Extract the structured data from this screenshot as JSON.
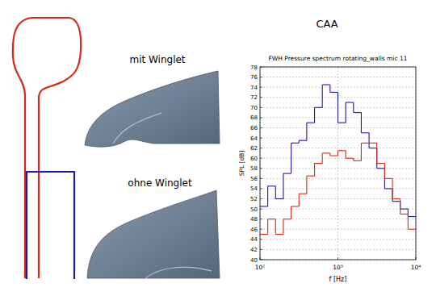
{
  "labels": {
    "with": "mit Winglet",
    "without": "ohne Winglet",
    "method": "CAA"
  },
  "chart_data": {
    "type": "histogram",
    "title": "FWH Pressure spectrum rotating_walls mic 11",
    "x_label": "f [Hz]",
    "y_label": "SPL [dB]",
    "bins": [
      100,
      125.9,
      158.5,
      199.5,
      251.2,
      316.2,
      398.1,
      501.2,
      631,
      794.3,
      1000,
      1258.9,
      1584.9,
      1995.3,
      2511.9,
      3162.3,
      3981.1,
      5011.9,
      6309.6,
      7943.3,
      10000
    ],
    "series": [
      {
        "color": "#1c1ca0",
        "values": [
          50.5,
          54.5,
          52,
          57,
          63,
          63.5,
          67,
          70,
          74.5,
          73,
          67,
          71,
          69,
          65,
          62,
          58,
          54,
          51.5,
          50,
          48.5
        ]
      },
      {
        "color": "#d42a1a",
        "values": [
          45,
          48,
          45,
          48,
          50.5,
          53,
          56.5,
          59,
          61,
          60.5,
          61.5,
          60,
          59.5,
          63,
          63,
          59,
          56,
          52,
          49,
          46
        ]
      }
    ],
    "log": "x",
    "xlim": [
      100,
      10000
    ],
    "xticks": [
      {
        "value": 100,
        "label": "10²"
      },
      {
        "value": 1000,
        "label": "10³"
      },
      {
        "value": 10000,
        "label": "10⁴"
      }
    ],
    "ylim": [
      40,
      78
    ],
    "yticks": [
      40,
      42,
      44,
      46,
      48,
      50,
      52,
      54,
      56,
      58,
      60,
      62,
      64,
      66,
      68,
      70,
      72,
      74,
      76,
      78
    ],
    "grid": true
  }
}
